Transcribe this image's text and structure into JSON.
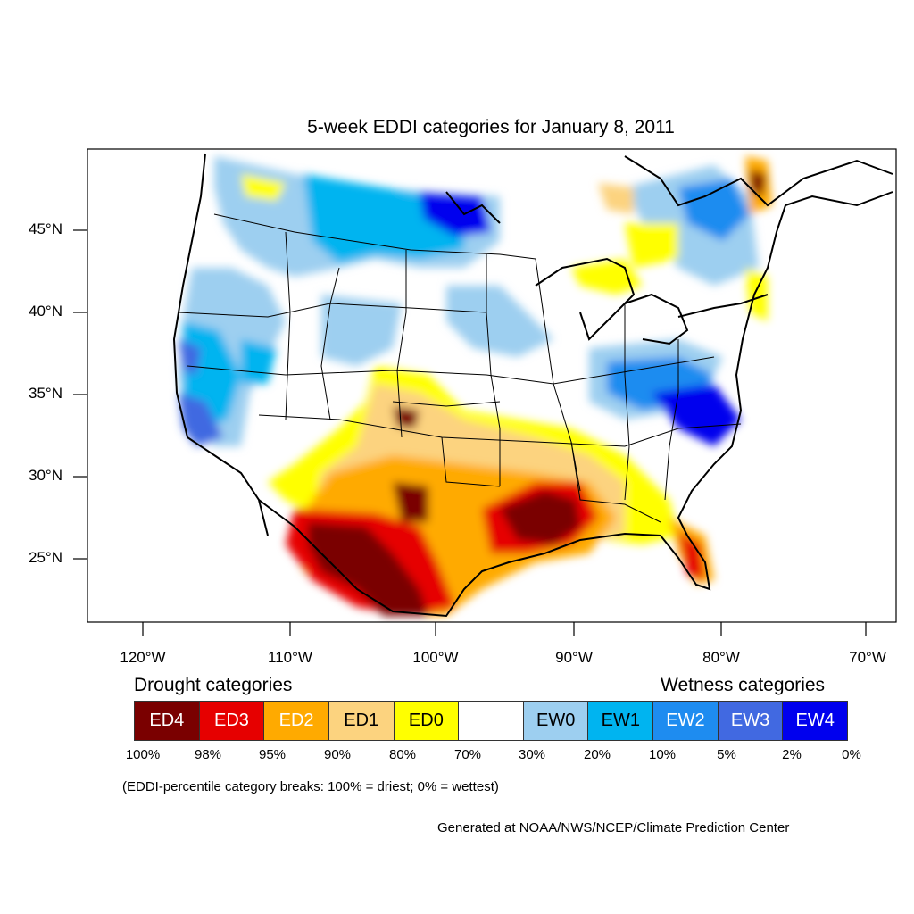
{
  "title": "5-week EDDI categories for January 8, 2011",
  "latitude_labels": [
    "45°N",
    "40°N",
    "35°N",
    "30°N",
    "25°N"
  ],
  "longitude_labels": [
    "120°W",
    "110°W",
    "100°W",
    "90°W",
    "80°W",
    "70°W"
  ],
  "legend": {
    "drought_heading": "Drought categories",
    "wetness_heading": "Wetness categories",
    "categories": [
      {
        "label": "ED4",
        "color": "#7a0000",
        "text_color": "#ffffff"
      },
      {
        "label": "ED3",
        "color": "#e60000",
        "text_color": "#ffffff"
      },
      {
        "label": "ED2",
        "color": "#ffaa00",
        "text_color": "#ffffff"
      },
      {
        "label": "ED1",
        "color": "#fcd37f",
        "text_color": "#000000"
      },
      {
        "label": "ED0",
        "color": "#ffff00",
        "text_color": "#000000"
      },
      {
        "label": "",
        "color": "#ffffff",
        "text_color": "#000000"
      },
      {
        "label": "EW0",
        "color": "#9dcff0",
        "text_color": "#000000"
      },
      {
        "label": "EW1",
        "color": "#00b4f0",
        "text_color": "#000000"
      },
      {
        "label": "EW2",
        "color": "#1e8cf0",
        "text_color": "#ffffff"
      },
      {
        "label": "EW3",
        "color": "#4169e1",
        "text_color": "#ffffff"
      },
      {
        "label": "EW4",
        "color": "#0000ee",
        "text_color": "#ffffff"
      }
    ],
    "percent_breaks": [
      "100%",
      "98%",
      "95%",
      "90%",
      "80%",
      "70%",
      "30%",
      "20%",
      "10%",
      "5%",
      "2%",
      "0%"
    ]
  },
  "note": "(EDDI-percentile category breaks: 100% = driest; 0% = wettest)",
  "credit": "Generated at NOAA/NWS/NCEP/Climate Prediction Center"
}
